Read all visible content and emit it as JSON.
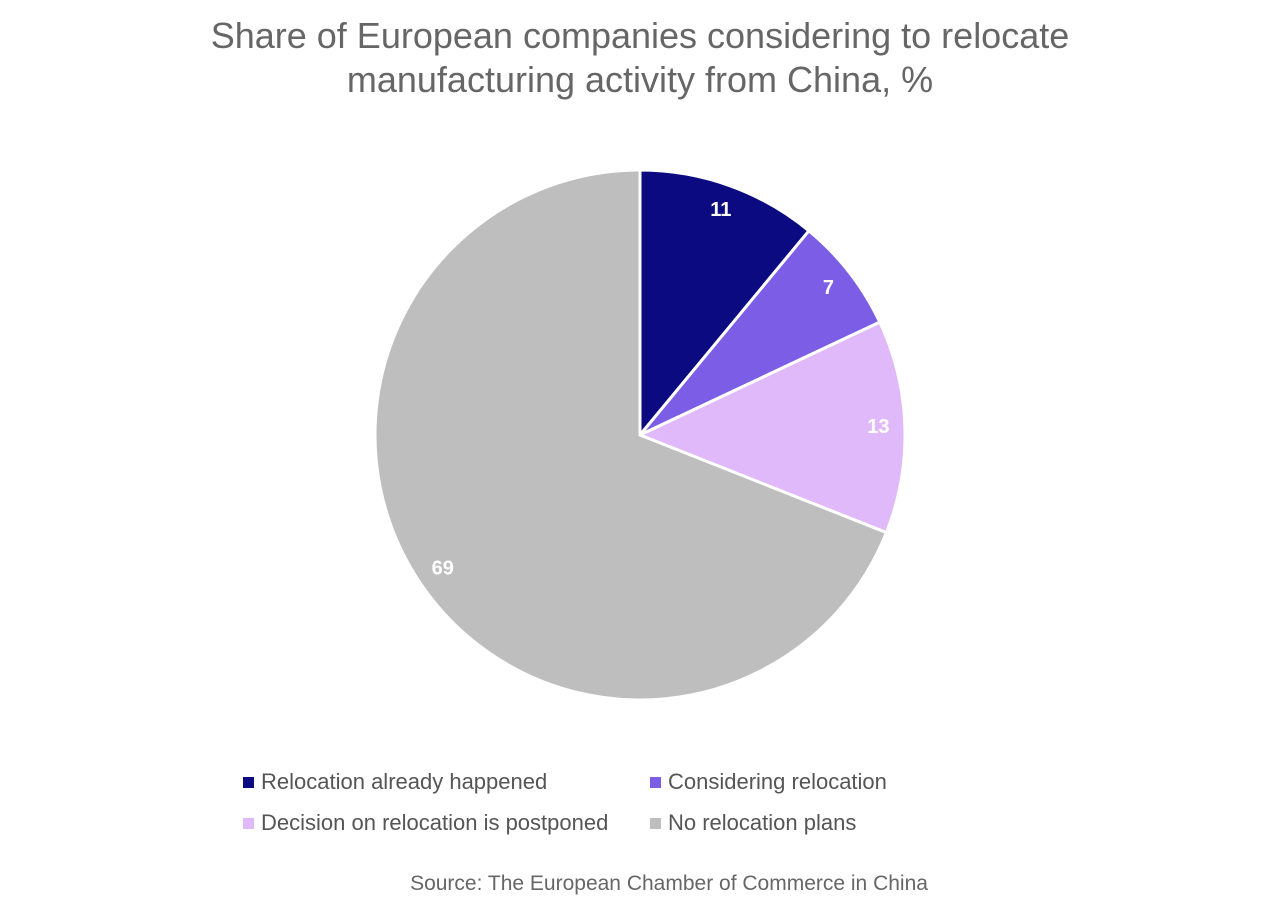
{
  "chart_data": {
    "type": "pie",
    "title": "Share of European companies considering to relocate manufacturing activity from China, %",
    "categories": [
      "Relocation already happened",
      "Considering relocation",
      "Decision on relocation is postponed",
      "No relocation plans"
    ],
    "values": [
      11,
      7,
      13,
      69
    ],
    "colors": [
      "#0b0a80",
      "#7b5de6",
      "#e0b9fb",
      "#bebebe"
    ],
    "source": "Source: The European Chamber of Commerce in China"
  }
}
